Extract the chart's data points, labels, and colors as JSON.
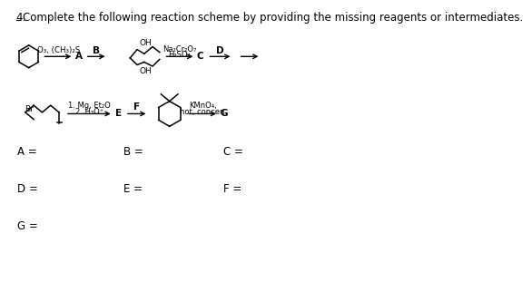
{
  "title": "4. Complete the following reaction scheme by providing the missing reagents or intermediates.",
  "title_fontsize": 8.5,
  "bg_color": "#ffffff",
  "reagent1": "O₃, (CH₃)₂S",
  "reagent2_l1": "Na₂Cr₂O₇",
  "reagent2_l2": "H₂SO₄",
  "reagent3_l1": "1. Mg, Et₂O",
  "reagent3_l2": "2. H₃O⁺",
  "reagent4_l1": "KMnO₄,",
  "reagent4_l2": "hot, concen",
  "label_A": "A",
  "label_B": "B",
  "label_C": "C",
  "label_D": "D",
  "label_E": "E",
  "label_F": "F",
  "label_G": "G",
  "ans_A": "A =",
  "ans_B": "B =",
  "ans_C": "C =",
  "ans_D": "D =",
  "ans_E": "E =",
  "ans_F": "F =",
  "ans_G": "G ="
}
